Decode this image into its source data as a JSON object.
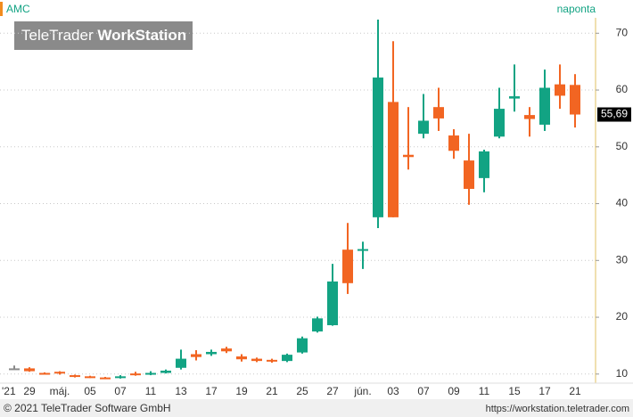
{
  "chart_data": {
    "type": "candlestick",
    "title": "AMC",
    "subtitle": "naponta",
    "year_label": "'21",
    "categories": [
      null,
      "29",
      null,
      "máj.",
      null,
      "05",
      null,
      "07",
      null,
      "11",
      null,
      "13",
      null,
      "17",
      null,
      "19",
      null,
      "21",
      null,
      "25",
      null,
      "27",
      null,
      "jún.",
      null,
      "03",
      null,
      "07",
      null,
      "09",
      null,
      "11",
      null,
      "15",
      null,
      "17",
      null,
      "21"
    ],
    "open": [
      11,
      11,
      10.2,
      10.4,
      9.8,
      9.6,
      9.4,
      9.3,
      10.1,
      9.9,
      10.2,
      11.1,
      13.5,
      13.5,
      14.5,
      13.1,
      12.7,
      12.5,
      12.3,
      13.8,
      17.5,
      18.6,
      31.9,
      31.7,
      37.6,
      57.9,
      48.6,
      52.3,
      57,
      52,
      47.6,
      44.5,
      51.8,
      58.5,
      55.6,
      53.9,
      61,
      60.9
    ],
    "high": [
      11.5,
      11.2,
      10.3,
      10.5,
      9.9,
      9.7,
      9.5,
      9.8,
      10.4,
      10.5,
      10.8,
      14.3,
      14.2,
      14.3,
      14.8,
      13.5,
      12.9,
      12.7,
      13.6,
      16.6,
      20.1,
      29.4,
      36.6,
      33.3,
      72.4,
      68.6,
      57,
      59.3,
      60.4,
      53.1,
      52.3,
      49.5,
      60.4,
      64.5,
      57,
      63.6,
      64.5,
      62.8
    ],
    "low": [
      10.8,
      10.4,
      9.9,
      9.9,
      9.4,
      9.3,
      9.1,
      9.2,
      9.7,
      9.8,
      10.1,
      10.8,
      12.4,
      13.2,
      13.7,
      12.2,
      12.1,
      12,
      12.1,
      13.6,
      17.3,
      18.5,
      24.1,
      28.5,
      35.7,
      37.6,
      46,
      51.5,
      52.8,
      47.9,
      39.8,
      42,
      51.5,
      56.2,
      51.8,
      52.8,
      56.7,
      53.4
    ],
    "close": [
      11,
      10.5,
      10,
      10.1,
      9.5,
      9.4,
      9.2,
      9.6,
      9.8,
      10.2,
      10.6,
      12.7,
      13,
      13.9,
      14,
      12.6,
      12.3,
      12.2,
      13.4,
      16.3,
      19.8,
      26.3,
      26,
      32,
      62.2,
      37.6,
      48.2,
      54.6,
      55,
      49.3,
      42.6,
      49.2,
      56.7,
      58.9,
      54.9,
      60.4,
      59,
      55.69
    ],
    "up_color": "#12a383",
    "down_color": "#f26522",
    "flat_color": "#8a8a8a",
    "ylim": [
      8.4,
      72.4
    ],
    "yticks": [
      10,
      20,
      30,
      40,
      50,
      60,
      70
    ],
    "grid": true,
    "last_price": {
      "value": 55.69,
      "label": "55,69"
    }
  },
  "logo": {
    "brand": "TeleTrader",
    "product": "WorkStation"
  },
  "footer": {
    "copyright": "© 2021 TeleTrader Software GmbH",
    "url": "https://workstation.teletrader.com"
  }
}
